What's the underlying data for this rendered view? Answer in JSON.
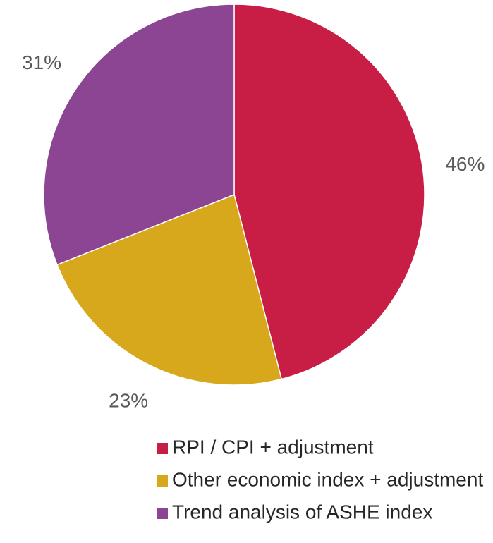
{
  "chart_data": {
    "type": "pie",
    "categories": [
      "RPI / CPI + adjustment",
      "Other economic index + adjustment",
      "Trend analysis of ASHE index"
    ],
    "values": [
      46,
      23,
      31
    ],
    "value_labels": [
      "46%",
      "23%",
      "31%"
    ],
    "colors": [
      "#c81e45",
      "#d8a81c",
      "#8b4592"
    ],
    "legend": "bottom"
  }
}
